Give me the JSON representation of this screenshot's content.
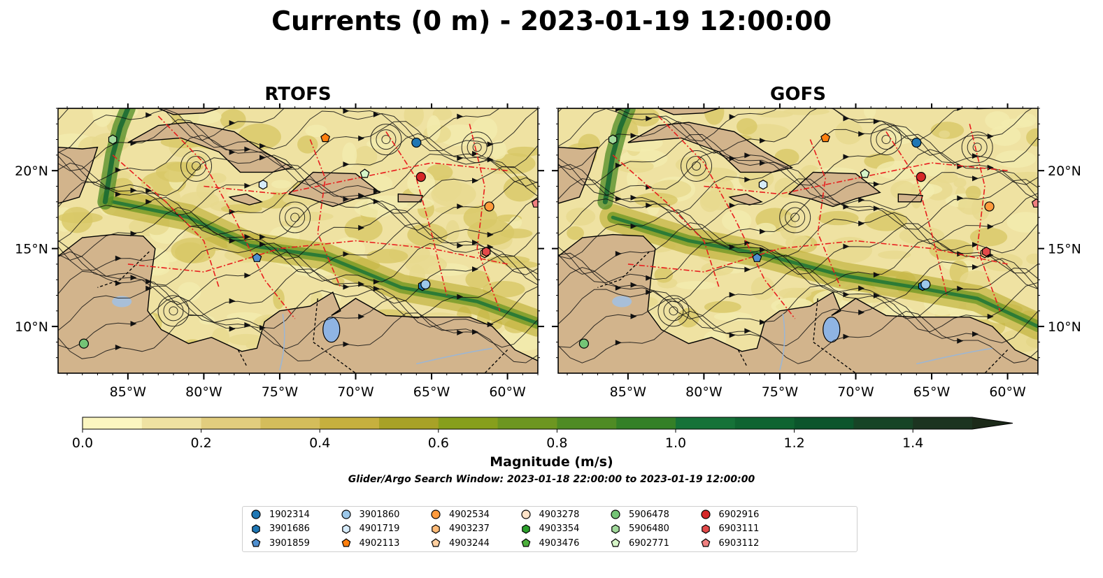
{
  "title": "Currents (0 m) - 2023-01-19 12:00:00",
  "panels": [
    {
      "title": "RTOFS"
    },
    {
      "title": "GOFS"
    }
  ],
  "x_ticks": [
    "85°W",
    "80°W",
    "75°W",
    "70°W",
    "65°W",
    "60°W"
  ],
  "y_ticks": [
    "20°N",
    "15°N",
    "10°N"
  ],
  "colorbar": {
    "label": "Magnitude (m/s)",
    "tick_labels": [
      "0.0",
      "0.2",
      "0.4",
      "0.6",
      "0.8",
      "1.0",
      "1.2",
      "1.4"
    ],
    "colors": [
      "#fbf6c0",
      "#efe2a2",
      "#e2cd7e",
      "#d4bd5b",
      "#c6b03e",
      "#a8a227",
      "#879f1c",
      "#6d9621",
      "#4f8b24",
      "#348027",
      "#157238",
      "#0f6431",
      "#0c552c",
      "#174426",
      "#1c3420",
      "#1c2a19"
    ]
  },
  "search_window": "Glider/Argo Search Window: 2023-01-18 22:00:00 to 2023-01-19 12:00:00",
  "legend": [
    {
      "label": "1902314",
      "color": "#1f77b4",
      "marker": "circle"
    },
    {
      "label": "3901686",
      "color": "#1f77b4",
      "marker": "hexagon"
    },
    {
      "label": "3901859",
      "color": "#4f8fcf",
      "marker": "pentagon"
    },
    {
      "label": "3901860",
      "color": "#9cc8ea",
      "marker": "circle"
    },
    {
      "label": "4901719",
      "color": "#d6ebfa",
      "marker": "hexagon"
    },
    {
      "label": "4902113",
      "color": "#ff7f0e",
      "marker": "pentagon"
    },
    {
      "label": "4902534",
      "color": "#ff9a3c",
      "marker": "circle"
    },
    {
      "label": "4903237",
      "color": "#ffbb78",
      "marker": "hexagon"
    },
    {
      "label": "4903244",
      "color": "#ffcf9f",
      "marker": "pentagon"
    },
    {
      "label": "4903278",
      "color": "#ffe3c8",
      "marker": "circle"
    },
    {
      "label": "4903354",
      "color": "#2ca02c",
      "marker": "hexagon"
    },
    {
      "label": "4903476",
      "color": "#4caf3c",
      "marker": "pentagon"
    },
    {
      "label": "5906478",
      "color": "#74c476",
      "marker": "circle"
    },
    {
      "label": "5906480",
      "color": "#a1d99b",
      "marker": "hexagon"
    },
    {
      "label": "6902771",
      "color": "#d6f5c8",
      "marker": "pentagon"
    },
    {
      "label": "6902916",
      "color": "#d62728",
      "marker": "circle"
    },
    {
      "label": "6903111",
      "color": "#e34a4a",
      "marker": "hexagon"
    },
    {
      "label": "6903112",
      "color": "#f08080",
      "marker": "pentagon"
    }
  ],
  "floats": [
    {
      "id": "1902314",
      "lon": -66.0,
      "lat": 21.8
    },
    {
      "id": "3901686",
      "lon": -65.6,
      "lat": 12.6
    },
    {
      "id": "3901859",
      "lon": -76.5,
      "lat": 14.4
    },
    {
      "id": "3901860",
      "lon": -65.4,
      "lat": 12.7
    },
    {
      "id": "4901719",
      "lon": -76.1,
      "lat": 19.1
    },
    {
      "id": "4902113",
      "lon": -72.0,
      "lat": 22.1
    },
    {
      "id": "4902534",
      "lon": -61.2,
      "lat": 17.7
    },
    {
      "id": "4903237",
      "lon": -61.5,
      "lat": 14.7
    },
    {
      "id": "5906478",
      "lon": -87.9,
      "lat": 8.9
    },
    {
      "id": "5906480",
      "lon": -86.0,
      "lat": 22.0
    },
    {
      "id": "6902771",
      "lon": -69.4,
      "lat": 19.8
    },
    {
      "id": "6902916",
      "lon": -65.7,
      "lat": 19.6
    },
    {
      "id": "6903111",
      "lon": -61.4,
      "lat": 14.8
    },
    {
      "id": "6903112",
      "lon": -58.1,
      "lat": 17.9
    }
  ]
}
